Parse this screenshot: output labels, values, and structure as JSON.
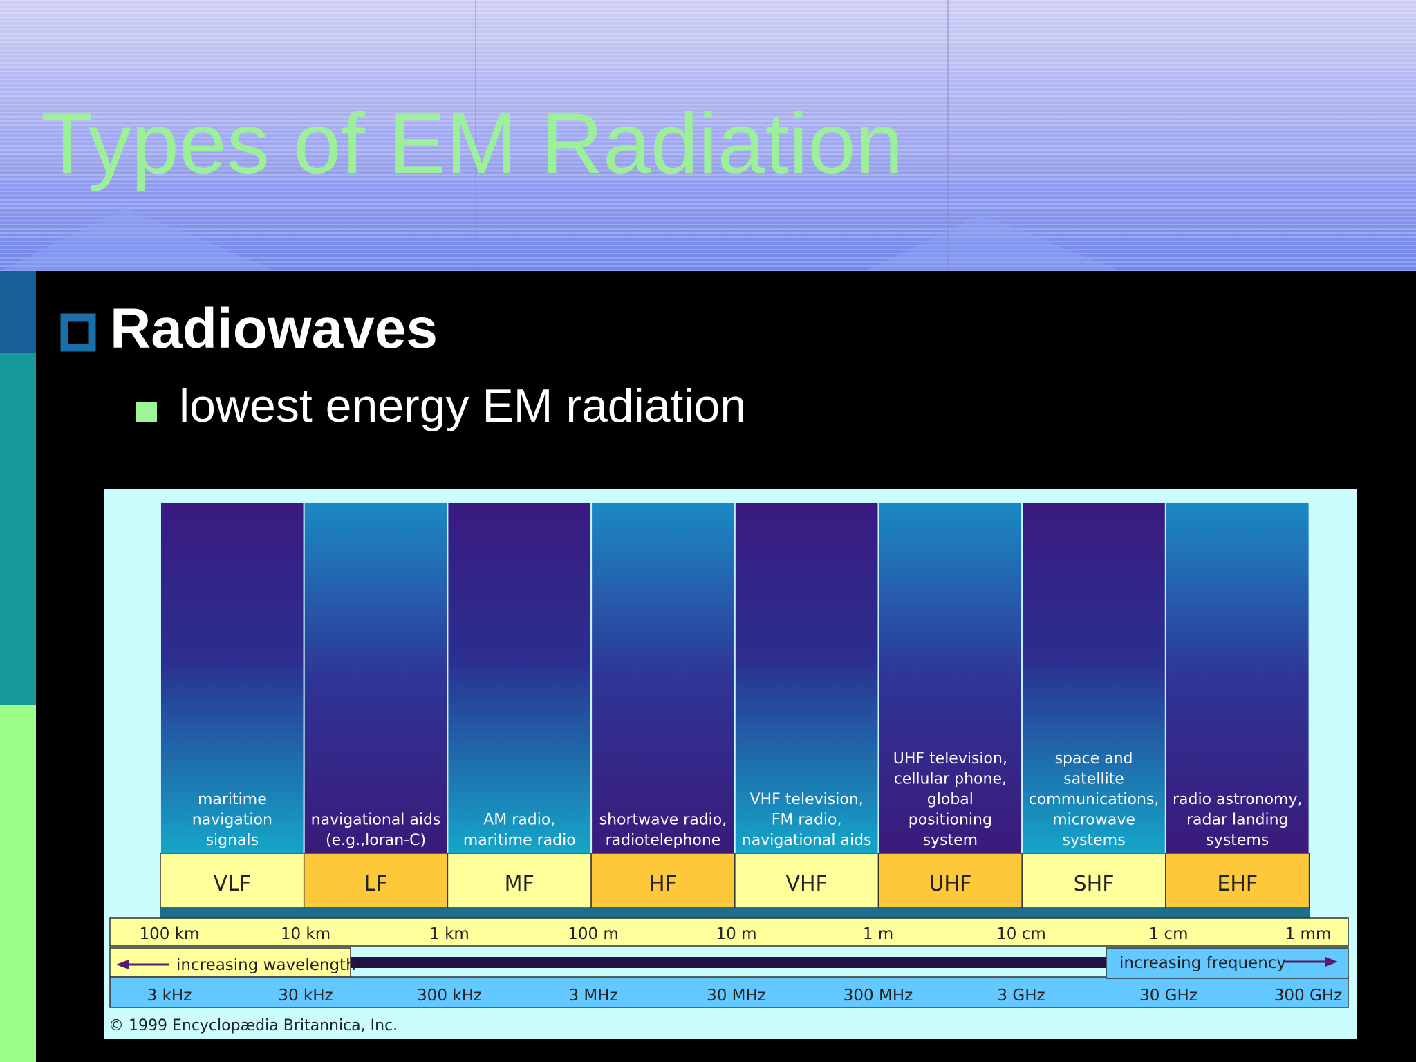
{
  "header": {
    "title": "Types of EM Radiation"
  },
  "bullet": {
    "text": "Radiowaves"
  },
  "sub_bullet": {
    "text": "lowest energy EM radiation"
  },
  "diagram": {
    "bands": [
      {
        "name": "VLF",
        "use": [
          "maritime",
          "navigation",
          "signals"
        ]
      },
      {
        "name": "LF",
        "use": [
          "navigational aids",
          "(e.g.,loran-C)"
        ]
      },
      {
        "name": "MF",
        "use": [
          "AM radio,",
          "maritime radio"
        ]
      },
      {
        "name": "HF",
        "use": [
          "shortwave radio,",
          "radiotelephone"
        ]
      },
      {
        "name": "VHF",
        "use": [
          "VHF television,",
          "FM radio,",
          "navigational aids"
        ]
      },
      {
        "name": "UHF",
        "use": [
          "UHF television,",
          "cellular phone,",
          "global",
          "positioning",
          "system"
        ]
      },
      {
        "name": "SHF",
        "use": [
          "space and",
          "satellite",
          "communications,",
          "microwave",
          "systems"
        ]
      },
      {
        "name": "EHF",
        "use": [
          "radio astronomy,",
          "radar landing",
          "systems"
        ]
      }
    ],
    "wavelengths": [
      "100 km",
      "10 km",
      "1 km",
      "100 m",
      "10 m",
      "1 m",
      "10 cm",
      "1 cm",
      "1 mm"
    ],
    "frequencies": [
      "3 kHz",
      "30 kHz",
      "300 kHz",
      "3 MHz",
      "30 MHz",
      "300 MHz",
      "3 GHz",
      "30 GHz",
      "300 GHz"
    ],
    "wavelength_arrow": "increasing wavelength",
    "frequency_arrow": "increasing frequency",
    "copyright": "© 1999 Encyclopædia Britannica, Inc."
  }
}
